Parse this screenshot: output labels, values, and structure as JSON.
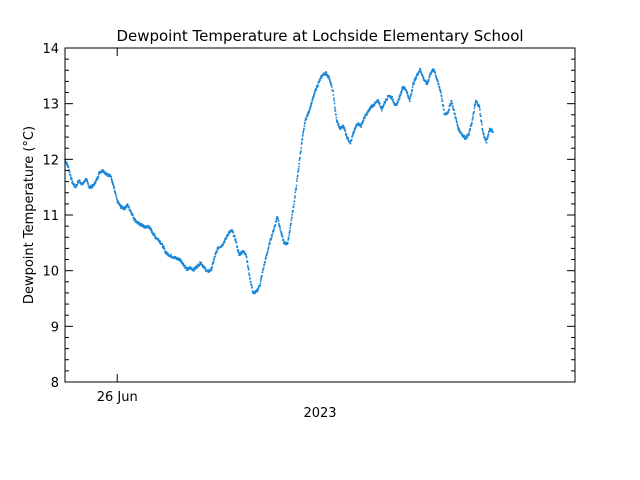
{
  "chart_data": {
    "type": "scatter",
    "title": "Dewpoint Temperature at Lochside Elementary School",
    "ylabel": "Dewpoint Temperature (°C)",
    "xlabel": "2023",
    "ylim": [
      8,
      14
    ],
    "xlim": [
      "2023-06-25T09:00",
      "2023-07-01T11:30"
    ],
    "x_ticks": [
      {
        "x": "2023-06-26T00:00",
        "label": "26 Jun"
      }
    ],
    "y_ticks": [
      8,
      9,
      10,
      11,
      12,
      13,
      14
    ],
    "grid": false,
    "color": "#1a86d6",
    "series": [
      {
        "points": [
          [
            "2023-06-25T09:00",
            12.0
          ],
          [
            "2023-06-25T10:00",
            11.85
          ],
          [
            "2023-06-25T11:00",
            11.6
          ],
          [
            "2023-06-25T12:00",
            11.5
          ],
          [
            "2023-06-25T13:00",
            11.62
          ],
          [
            "2023-06-25T14:00",
            11.55
          ],
          [
            "2023-06-25T15:00",
            11.65
          ],
          [
            "2023-06-25T16:00",
            11.5
          ],
          [
            "2023-06-25T17:00",
            11.52
          ],
          [
            "2023-06-25T18:00",
            11.62
          ],
          [
            "2023-06-25T19:00",
            11.78
          ],
          [
            "2023-06-25T20:00",
            11.8
          ],
          [
            "2023-06-25T21:00",
            11.72
          ],
          [
            "2023-06-25T22:00",
            11.72
          ],
          [
            "2023-06-25T23:00",
            11.5
          ],
          [
            "2023-06-26T00:00",
            11.25
          ],
          [
            "2023-06-26T01:00",
            11.15
          ],
          [
            "2023-06-26T02:00",
            11.12
          ],
          [
            "2023-06-26T03:00",
            11.18
          ],
          [
            "2023-06-26T04:00",
            11.05
          ],
          [
            "2023-06-26T05:00",
            10.92
          ],
          [
            "2023-06-26T06:00",
            10.85
          ],
          [
            "2023-06-26T07:00",
            10.82
          ],
          [
            "2023-06-26T08:00",
            10.78
          ],
          [
            "2023-06-26T09:00",
            10.8
          ],
          [
            "2023-06-26T10:00",
            10.7
          ],
          [
            "2023-06-26T11:00",
            10.6
          ],
          [
            "2023-06-26T12:00",
            10.55
          ],
          [
            "2023-06-26T13:00",
            10.45
          ],
          [
            "2023-06-26T14:00",
            10.32
          ],
          [
            "2023-06-26T15:00",
            10.28
          ],
          [
            "2023-06-26T16:00",
            10.25
          ],
          [
            "2023-06-26T17:00",
            10.22
          ],
          [
            "2023-06-26T18:00",
            10.2
          ],
          [
            "2023-06-26T19:00",
            10.12
          ],
          [
            "2023-06-26T20:00",
            10.02
          ],
          [
            "2023-06-26T21:00",
            10.05
          ],
          [
            "2023-06-26T22:00",
            10.02
          ],
          [
            "2023-06-26T23:00",
            10.08
          ],
          [
            "2023-06-27T00:00",
            10.15
          ],
          [
            "2023-06-27T01:00",
            10.05
          ],
          [
            "2023-06-27T02:00",
            9.98
          ],
          [
            "2023-06-27T03:00",
            10.02
          ],
          [
            "2023-06-27T04:00",
            10.25
          ],
          [
            "2023-06-27T05:00",
            10.42
          ],
          [
            "2023-06-27T06:00",
            10.45
          ],
          [
            "2023-06-27T07:00",
            10.55
          ],
          [
            "2023-06-27T08:00",
            10.68
          ],
          [
            "2023-06-27T09:00",
            10.72
          ],
          [
            "2023-06-27T10:00",
            10.55
          ],
          [
            "2023-06-27T11:00",
            10.28
          ],
          [
            "2023-06-27T12:00",
            10.35
          ],
          [
            "2023-06-27T13:00",
            10.3
          ],
          [
            "2023-06-27T14:00",
            9.9
          ],
          [
            "2023-06-27T15:00",
            9.6
          ],
          [
            "2023-06-27T16:00",
            9.62
          ],
          [
            "2023-06-27T17:00",
            9.75
          ],
          [
            "2023-06-27T18:00",
            10.05
          ],
          [
            "2023-06-27T19:00",
            10.3
          ],
          [
            "2023-06-27T20:00",
            10.55
          ],
          [
            "2023-06-27T21:00",
            10.75
          ],
          [
            "2023-06-27T22:00",
            10.98
          ],
          [
            "2023-06-27T23:00",
            10.7
          ],
          [
            "2023-06-28T00:00",
            10.48
          ],
          [
            "2023-06-28T01:00",
            10.5
          ],
          [
            "2023-06-28T02:00",
            10.9
          ],
          [
            "2023-06-28T03:00",
            11.3
          ],
          [
            "2023-06-28T04:00",
            11.8
          ],
          [
            "2023-06-28T05:00",
            12.3
          ],
          [
            "2023-06-28T06:00",
            12.7
          ],
          [
            "2023-06-28T07:00",
            12.85
          ],
          [
            "2023-06-28T08:00",
            13.05
          ],
          [
            "2023-06-28T09:00",
            13.25
          ],
          [
            "2023-06-28T10:00",
            13.4
          ],
          [
            "2023-06-28T11:00",
            13.52
          ],
          [
            "2023-06-28T12:00",
            13.55
          ],
          [
            "2023-06-28T13:00",
            13.45
          ],
          [
            "2023-06-28T14:00",
            13.2
          ],
          [
            "2023-06-28T15:00",
            12.7
          ],
          [
            "2023-06-28T16:00",
            12.55
          ],
          [
            "2023-06-28T17:00",
            12.6
          ],
          [
            "2023-06-28T18:00",
            12.4
          ],
          [
            "2023-06-28T19:00",
            12.3
          ],
          [
            "2023-06-28T20:00",
            12.5
          ],
          [
            "2023-06-28T21:00",
            12.65
          ],
          [
            "2023-06-28T22:00",
            12.6
          ],
          [
            "2023-06-28T23:00",
            12.75
          ],
          [
            "2023-06-29T00:00",
            12.85
          ],
          [
            "2023-06-29T01:00",
            12.95
          ],
          [
            "2023-06-29T02:00",
            13.0
          ],
          [
            "2023-06-29T03:00",
            13.05
          ],
          [
            "2023-06-29T04:00",
            12.9
          ],
          [
            "2023-06-29T05:00",
            13.05
          ],
          [
            "2023-06-29T06:00",
            13.15
          ],
          [
            "2023-06-29T07:00",
            13.1
          ],
          [
            "2023-06-29T08:00",
            12.95
          ],
          [
            "2023-06-29T09:00",
            13.1
          ],
          [
            "2023-06-29T10:00",
            13.3
          ],
          [
            "2023-06-29T11:00",
            13.25
          ],
          [
            "2023-06-29T12:00",
            13.05
          ],
          [
            "2023-06-29T13:00",
            13.35
          ],
          [
            "2023-06-29T14:00",
            13.5
          ],
          [
            "2023-06-29T15:00",
            13.62
          ],
          [
            "2023-06-29T16:00",
            13.45
          ],
          [
            "2023-06-29T17:00",
            13.35
          ],
          [
            "2023-06-29T18:00",
            13.55
          ],
          [
            "2023-06-29T19:00",
            13.62
          ],
          [
            "2023-06-29T20:00",
            13.4
          ],
          [
            "2023-06-29T21:00",
            13.2
          ],
          [
            "2023-06-29T22:00",
            12.8
          ],
          [
            "2023-06-29T23:00",
            12.85
          ],
          [
            "2023-06-30T00:00",
            13.05
          ],
          [
            "2023-06-30T01:00",
            12.8
          ],
          [
            "2023-06-30T02:00",
            12.55
          ],
          [
            "2023-06-30T03:00",
            12.45
          ],
          [
            "2023-06-30T04:00",
            12.38
          ],
          [
            "2023-06-30T05:00",
            12.45
          ],
          [
            "2023-06-30T06:00",
            12.7
          ],
          [
            "2023-06-30T07:00",
            13.05
          ],
          [
            "2023-06-30T08:00",
            12.95
          ],
          [
            "2023-06-30T09:00",
            12.5
          ],
          [
            "2023-06-30T10:00",
            12.3
          ],
          [
            "2023-06-30T11:00",
            12.55
          ],
          [
            "2023-06-30T12:00",
            12.5
          ]
        ]
      }
    ]
  }
}
